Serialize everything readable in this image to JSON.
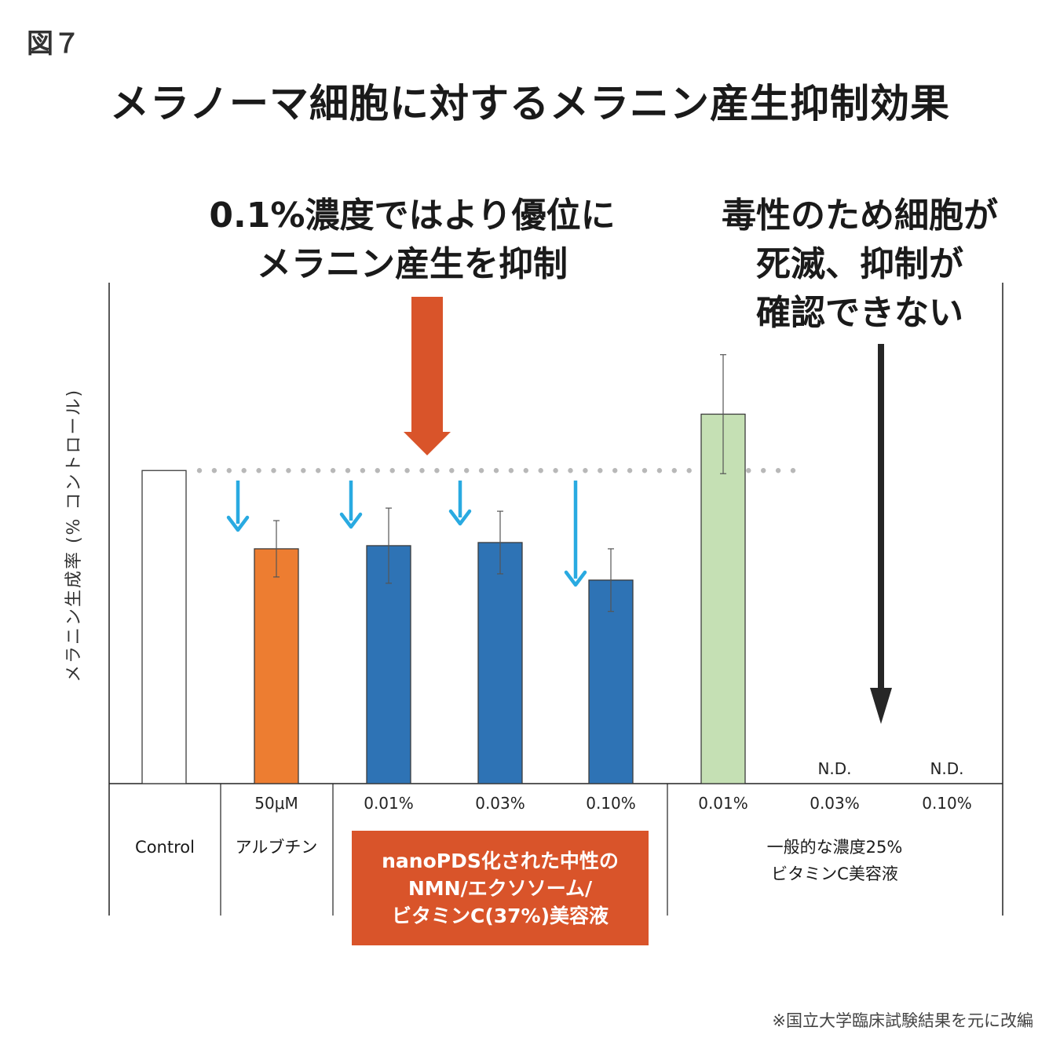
{
  "figure_label": "図７",
  "footnote": "※国立大学臨床試験結果を元に改編",
  "colors": {
    "control": "#ffffff",
    "arbutin": "#ed7d31",
    "nano": "#2e73b5",
    "general": "#c5e0b4",
    "highlight": "#d9542a",
    "down_arrow": "#29aae1",
    "dark_arrow": "#262626"
  },
  "annotations": {
    "left": [
      "0.1%濃度ではより優位に",
      "メラニン産生を抑制"
    ],
    "right": [
      "毒性のため細胞が",
      "死滅、抑制が",
      "確認できない"
    ]
  },
  "groups": {
    "control": "Control",
    "arbutin": "アルブチン",
    "nano": [
      "nanoPDS化された中性の",
      "NMN/エクソソーム/",
      "ビタミンC(37%)美容液"
    ],
    "general": [
      "一般的な濃度25%",
      "ビタミンC美容液"
    ]
  },
  "chart_data": {
    "type": "bar",
    "title": "メラノーマ細胞に対するメラニン産生抑制効果",
    "ylabel": "メラニン生成率 (% コントロール)",
    "xlabel": "",
    "ylim": [
      0,
      160
    ],
    "reference_line": 100,
    "categories": [
      "",
      "50μM",
      "0.01%",
      "0.03%",
      "0.10%",
      "0.01%",
      "0.03%",
      "0.10%"
    ],
    "values": [
      100,
      75,
      76,
      77,
      65,
      118,
      null,
      null
    ],
    "error": [
      0,
      9,
      12,
      10,
      10,
      19,
      null,
      null
    ],
    "value_labels": [
      "",
      "",
      "",
      "",
      "",
      "",
      "N.D.",
      "N.D."
    ],
    "series_color_keys": [
      "control",
      "arbutin",
      "nano",
      "nano",
      "nano",
      "general",
      "general",
      "general"
    ]
  }
}
